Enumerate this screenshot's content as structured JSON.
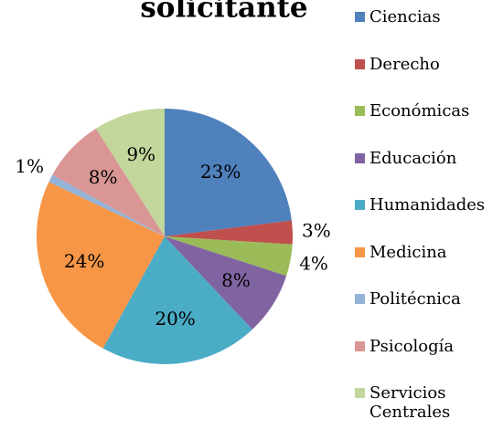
{
  "chart_data": {
    "type": "pie",
    "title": "solicitante",
    "categories": [
      "Ciencias",
      "Derecho",
      "Económicas",
      "Educación",
      "Humanidades",
      "Medicina",
      "Politécnica",
      "Psicología",
      "Servicios Centrales"
    ],
    "values": [
      23,
      3,
      4,
      8,
      20,
      24,
      1,
      8,
      9
    ],
    "value_labels": [
      "23%",
      "3%",
      "4%",
      "8%",
      "20%",
      "24%",
      "1%",
      "8%",
      "9%"
    ],
    "colors": [
      "#4f81bd",
      "#c0504d",
      "#9bbb59",
      "#8064a2",
      "#4bacc6",
      "#f79646",
      "#95b3d7",
      "#d99694",
      "#c3d69b"
    ],
    "legend": "right"
  }
}
